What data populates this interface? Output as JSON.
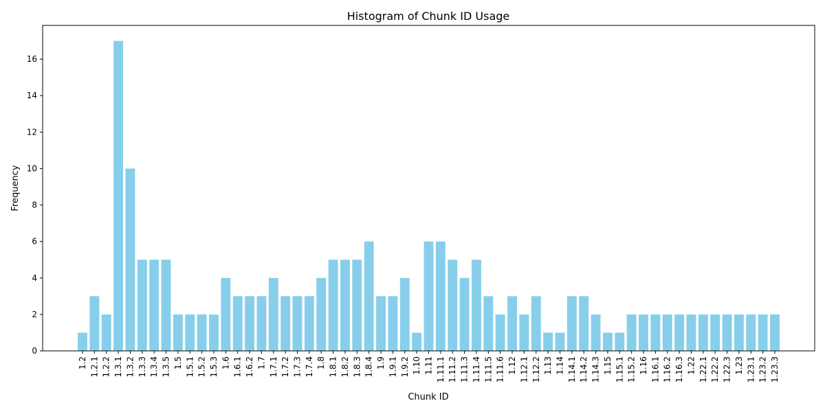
{
  "chart_data": {
    "type": "bar",
    "title": "Histogram of Chunk ID Usage",
    "xlabel": "Chunk ID",
    "ylabel": "Frequency",
    "ylim": [
      0,
      17.85
    ],
    "yticks": [
      0,
      2,
      4,
      6,
      8,
      10,
      12,
      14,
      16
    ],
    "bar_color": "#87ceeb",
    "grid": false,
    "categories": [
      "1.2",
      "1.2.1",
      "1.2.2",
      "1.3.1",
      "1.3.2",
      "1.3.3",
      "1.3.4",
      "1.3.5",
      "1.5",
      "1.5.1",
      "1.5.2",
      "1.5.3",
      "1.6",
      "1.6.1",
      "1.6.2",
      "1.7",
      "1.7.1",
      "1.7.2",
      "1.7.3",
      "1.7.4",
      "1.8",
      "1.8.1",
      "1.8.2",
      "1.8.3",
      "1.8.4",
      "1.9",
      "1.9.1",
      "1.9.2",
      "1.10",
      "1.11",
      "1.11.1",
      "1.11.2",
      "1.11.3",
      "1.11.4",
      "1.11.5",
      "1.11.6",
      "1.12",
      "1.12.1",
      "1.12.2",
      "1.13",
      "1.14",
      "1.14.1",
      "1.14.2",
      "1.14.3",
      "1.15",
      "1.15.1",
      "1.15.2",
      "1.16",
      "1.16.1",
      "1.16.2",
      "1.16.3",
      "1.22",
      "1.22.1",
      "1.22.2",
      "1.22.3",
      "1.23",
      "1.23.1",
      "1.23.2",
      "1.23.3"
    ],
    "values": [
      1,
      3,
      2,
      17,
      10,
      5,
      5,
      5,
      2,
      2,
      2,
      2,
      4,
      3,
      3,
      3,
      4,
      3,
      3,
      3,
      4,
      5,
      5,
      5,
      6,
      3,
      3,
      4,
      1,
      6,
      6,
      5,
      4,
      5,
      3,
      2,
      3,
      2,
      3,
      1,
      1,
      3,
      3,
      2,
      1,
      1,
      2,
      2,
      2,
      2,
      2,
      2,
      2,
      2,
      2,
      2,
      2,
      2,
      2
    ]
  }
}
